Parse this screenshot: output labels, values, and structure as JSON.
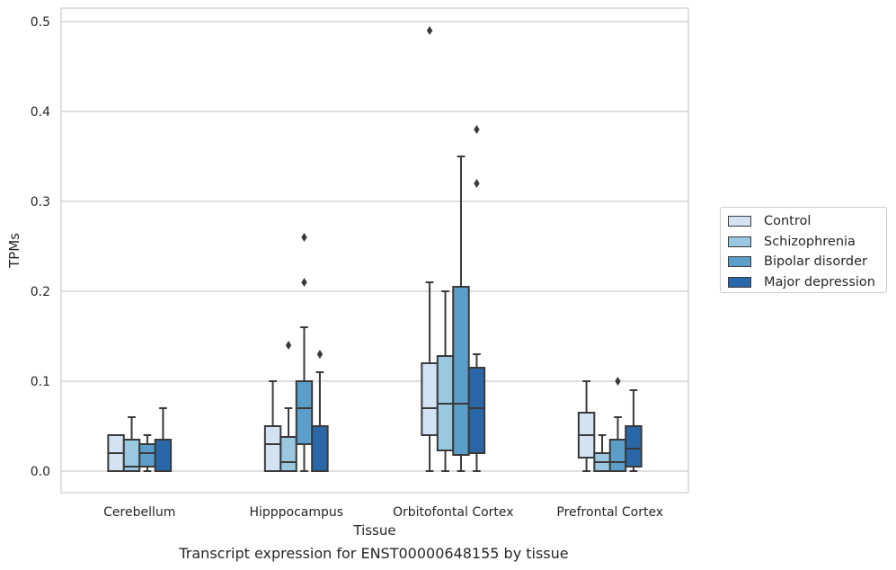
{
  "caption": "Transcript expression for ENST00000648155 by tissue",
  "chart_data": {
    "type": "box",
    "xlabel": "Tissue",
    "ylabel": "TPMs",
    "ylim": [
      -0.024,
      0.515
    ],
    "yticks": [
      0.0,
      0.1,
      0.2,
      0.3,
      0.4,
      0.5
    ],
    "ytick_labels": [
      "0.0",
      "0.1",
      "0.2",
      "0.3",
      "0.4",
      "0.5"
    ],
    "grid": "horizontal",
    "legend_position": "right",
    "categories": [
      "Cerebellum",
      "Hipppocampus",
      "Orbitofontal Cortex",
      "Prefrontal Cortex"
    ],
    "series": [
      {
        "name": "Control",
        "color": "#d3e3f3",
        "boxes": [
          {
            "whislo": 0.0,
            "q1": 0.0,
            "med": 0.02,
            "q3": 0.04,
            "whishi": 0.04,
            "fliers": []
          },
          {
            "whislo": 0.0,
            "q1": 0.0,
            "med": 0.03,
            "q3": 0.05,
            "whishi": 0.1,
            "fliers": []
          },
          {
            "whislo": 0.0,
            "q1": 0.04,
            "med": 0.07,
            "q3": 0.12,
            "whishi": 0.21,
            "fliers": [
              0.49
            ]
          },
          {
            "whislo": 0.0,
            "q1": 0.015,
            "med": 0.04,
            "q3": 0.065,
            "whishi": 0.1,
            "fliers": []
          }
        ]
      },
      {
        "name": "Schizophrenia",
        "color": "#9ac8e0",
        "boxes": [
          {
            "whislo": 0.0,
            "q1": 0.0,
            "med": 0.005,
            "q3": 0.035,
            "whishi": 0.06,
            "fliers": []
          },
          {
            "whislo": 0.0,
            "q1": 0.0,
            "med": 0.01,
            "q3": 0.038,
            "whishi": 0.07,
            "fliers": [
              0.14
            ]
          },
          {
            "whislo": 0.0,
            "q1": 0.023,
            "med": 0.075,
            "q3": 0.128,
            "whishi": 0.2,
            "fliers": []
          },
          {
            "whislo": 0.0,
            "q1": 0.0,
            "med": 0.01,
            "q3": 0.02,
            "whishi": 0.04,
            "fliers": []
          }
        ]
      },
      {
        "name": "Bipolar disorder",
        "color": "#5a9ec9",
        "boxes": [
          {
            "whislo": 0.0,
            "q1": 0.005,
            "med": 0.02,
            "q3": 0.03,
            "whishi": 0.04,
            "fliers": []
          },
          {
            "whislo": 0.0,
            "q1": 0.03,
            "med": 0.07,
            "q3": 0.1,
            "whishi": 0.16,
            "fliers": [
              0.21,
              0.26
            ]
          },
          {
            "whislo": 0.0,
            "q1": 0.018,
            "med": 0.075,
            "q3": 0.205,
            "whishi": 0.35,
            "fliers": []
          },
          {
            "whislo": 0.0,
            "q1": 0.0,
            "med": 0.01,
            "q3": 0.035,
            "whishi": 0.06,
            "fliers": [
              0.1
            ]
          }
        ]
      },
      {
        "name": "Major depression",
        "color": "#2967a9",
        "boxes": [
          {
            "whislo": 0.0,
            "q1": 0.0,
            "med": 0.0,
            "q3": 0.035,
            "whishi": 0.07,
            "fliers": []
          },
          {
            "whislo": 0.0,
            "q1": 0.0,
            "med": 0.0,
            "q3": 0.05,
            "whishi": 0.11,
            "fliers": [
              0.13
            ]
          },
          {
            "whislo": 0.0,
            "q1": 0.02,
            "med": 0.07,
            "q3": 0.115,
            "whishi": 0.13,
            "fliers": [
              0.32,
              0.38
            ]
          },
          {
            "whislo": 0.0,
            "q1": 0.005,
            "med": 0.025,
            "q3": 0.05,
            "whishi": 0.09,
            "fliers": []
          }
        ]
      }
    ]
  }
}
